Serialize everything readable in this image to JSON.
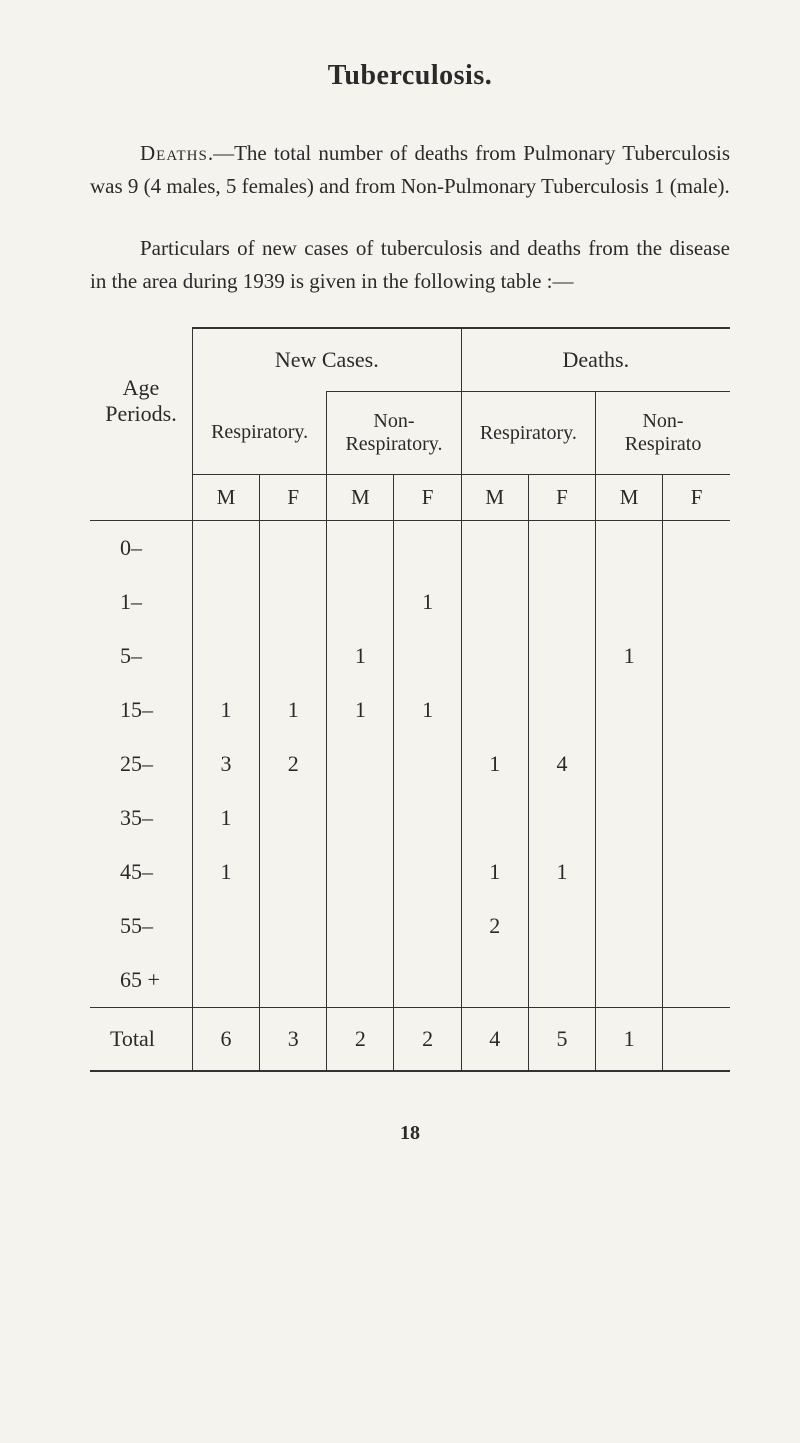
{
  "title": "Tuberculosis.",
  "para1": "Deaths.—The total number of deaths from Pulmonary Tuberculosis was 9 (4 males, 5 females) and from Non-Pulmonary Tuberculosis 1 (male).",
  "para2": "Particulars of new cases of tuberculosis and deaths from the disease in the area during 1939 is given in the following table :—",
  "table": {
    "header_top": {
      "new_cases": "New Cases.",
      "deaths": "Deaths."
    },
    "header_mid": {
      "age_periods": "Age\nPeriods.",
      "respiratory": "Respiratory.",
      "non_respiratory": "Non-\nRespiratory.",
      "respiratory2": "Respiratory.",
      "non_respirato": "Non-\nRespirato"
    },
    "header_mf": [
      "M",
      "F",
      "M",
      "F",
      "M",
      "F",
      "M",
      "F"
    ],
    "rows": [
      {
        "age": "0–",
        "cells": [
          "",
          "",
          "",
          "",
          "",
          "",
          "",
          ""
        ]
      },
      {
        "age": "1–",
        "cells": [
          "",
          "",
          "",
          "1",
          "",
          "",
          "",
          ""
        ]
      },
      {
        "age": "5–",
        "cells": [
          "",
          "",
          "1",
          "",
          "",
          "",
          "1",
          ""
        ]
      },
      {
        "age": "15–",
        "cells": [
          "1",
          "1",
          "1",
          "1",
          "",
          "",
          "",
          ""
        ]
      },
      {
        "age": "25–",
        "cells": [
          "3",
          "2",
          "",
          "",
          "1",
          "4",
          "",
          ""
        ]
      },
      {
        "age": "35–",
        "cells": [
          "1",
          "",
          "",
          "",
          "",
          "",
          "",
          ""
        ]
      },
      {
        "age": "45–",
        "cells": [
          "1",
          "",
          "",
          "",
          "1",
          "1",
          "",
          ""
        ]
      },
      {
        "age": "55–",
        "cells": [
          "",
          "",
          "",
          "",
          "2",
          "",
          "",
          ""
        ]
      },
      {
        "age": "65 +",
        "cells": [
          "",
          "",
          "",
          "",
          "",
          "",
          "",
          ""
        ]
      }
    ],
    "total": {
      "label": "Total",
      "cells": [
        "6",
        "3",
        "2",
        "2",
        "4",
        "5",
        "1",
        ""
      ]
    }
  },
  "page_number": "18"
}
